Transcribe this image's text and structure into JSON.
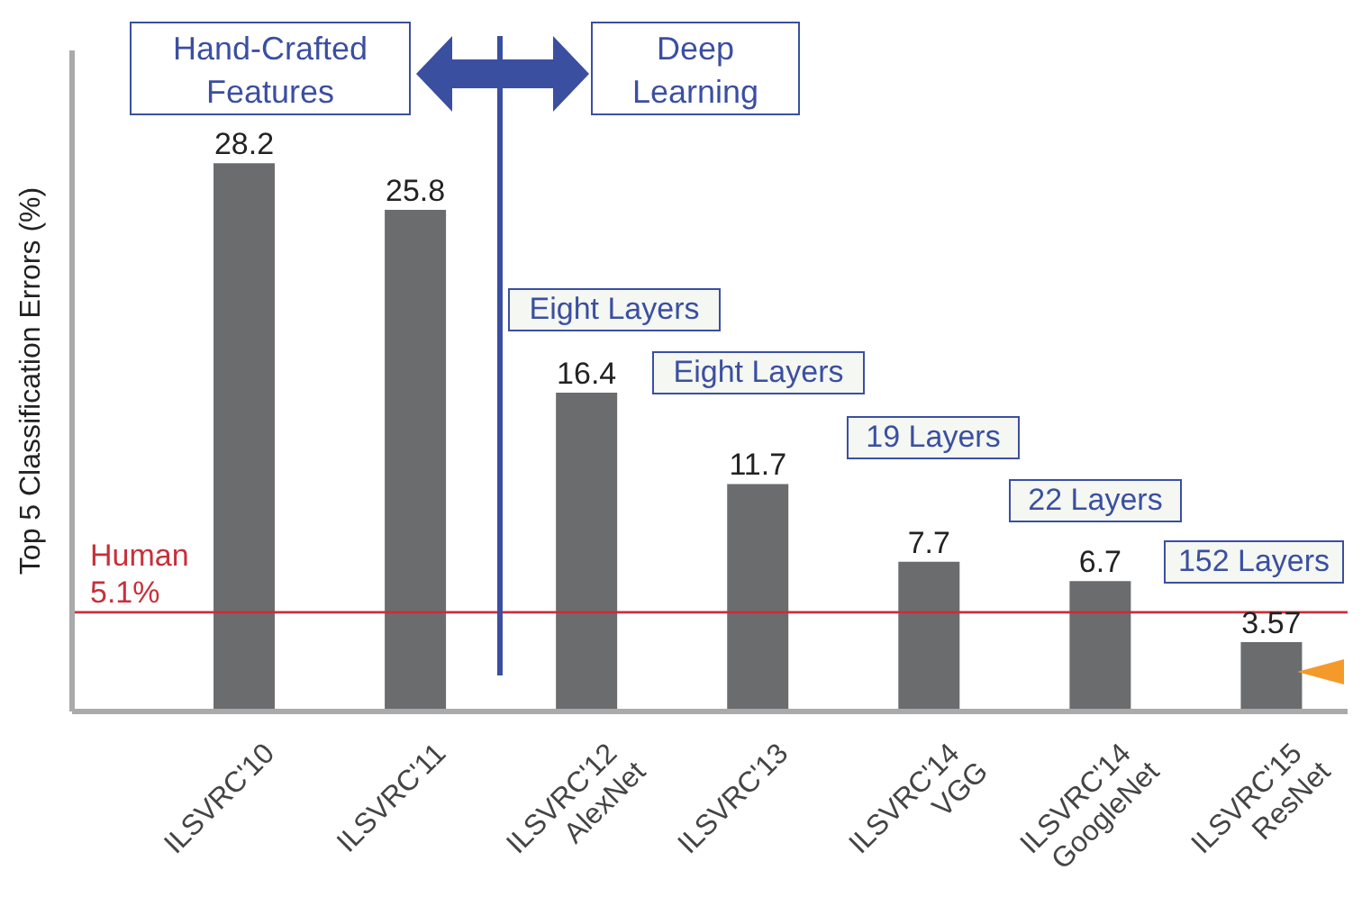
{
  "chart_data": {
    "type": "bar",
    "ylabel": "Top 5 Classification Errors (%)",
    "categories": [
      "ILSVRC'10",
      "ILSVRC'11",
      "ILSVRC'12\nAlexNet",
      "ILSVRC'13",
      "ILSVRC'14\nVGG",
      "ILSVRC'14\nGoogleNet",
      "ILSVRC'15\nResNet"
    ],
    "values": [
      28.2,
      25.8,
      16.4,
      11.7,
      7.7,
      6.7,
      3.57
    ],
    "color": "#6b6c6e",
    "data_labels": true,
    "ylim": [
      0,
      34
    ],
    "tick_labels": "x",
    "grid": false,
    "ref_lines": [
      {
        "axis": "y",
        "value": 5.1,
        "label": "Human\n5.1%",
        "color": "#c8303a"
      }
    ],
    "annotations": [
      "Hand-Crafted\nFeatures",
      "Deep\nLearning",
      "Eight Layers",
      "Eight Layers",
      "19 Layers",
      "22 Layers",
      "152 Layers"
    ]
  }
}
